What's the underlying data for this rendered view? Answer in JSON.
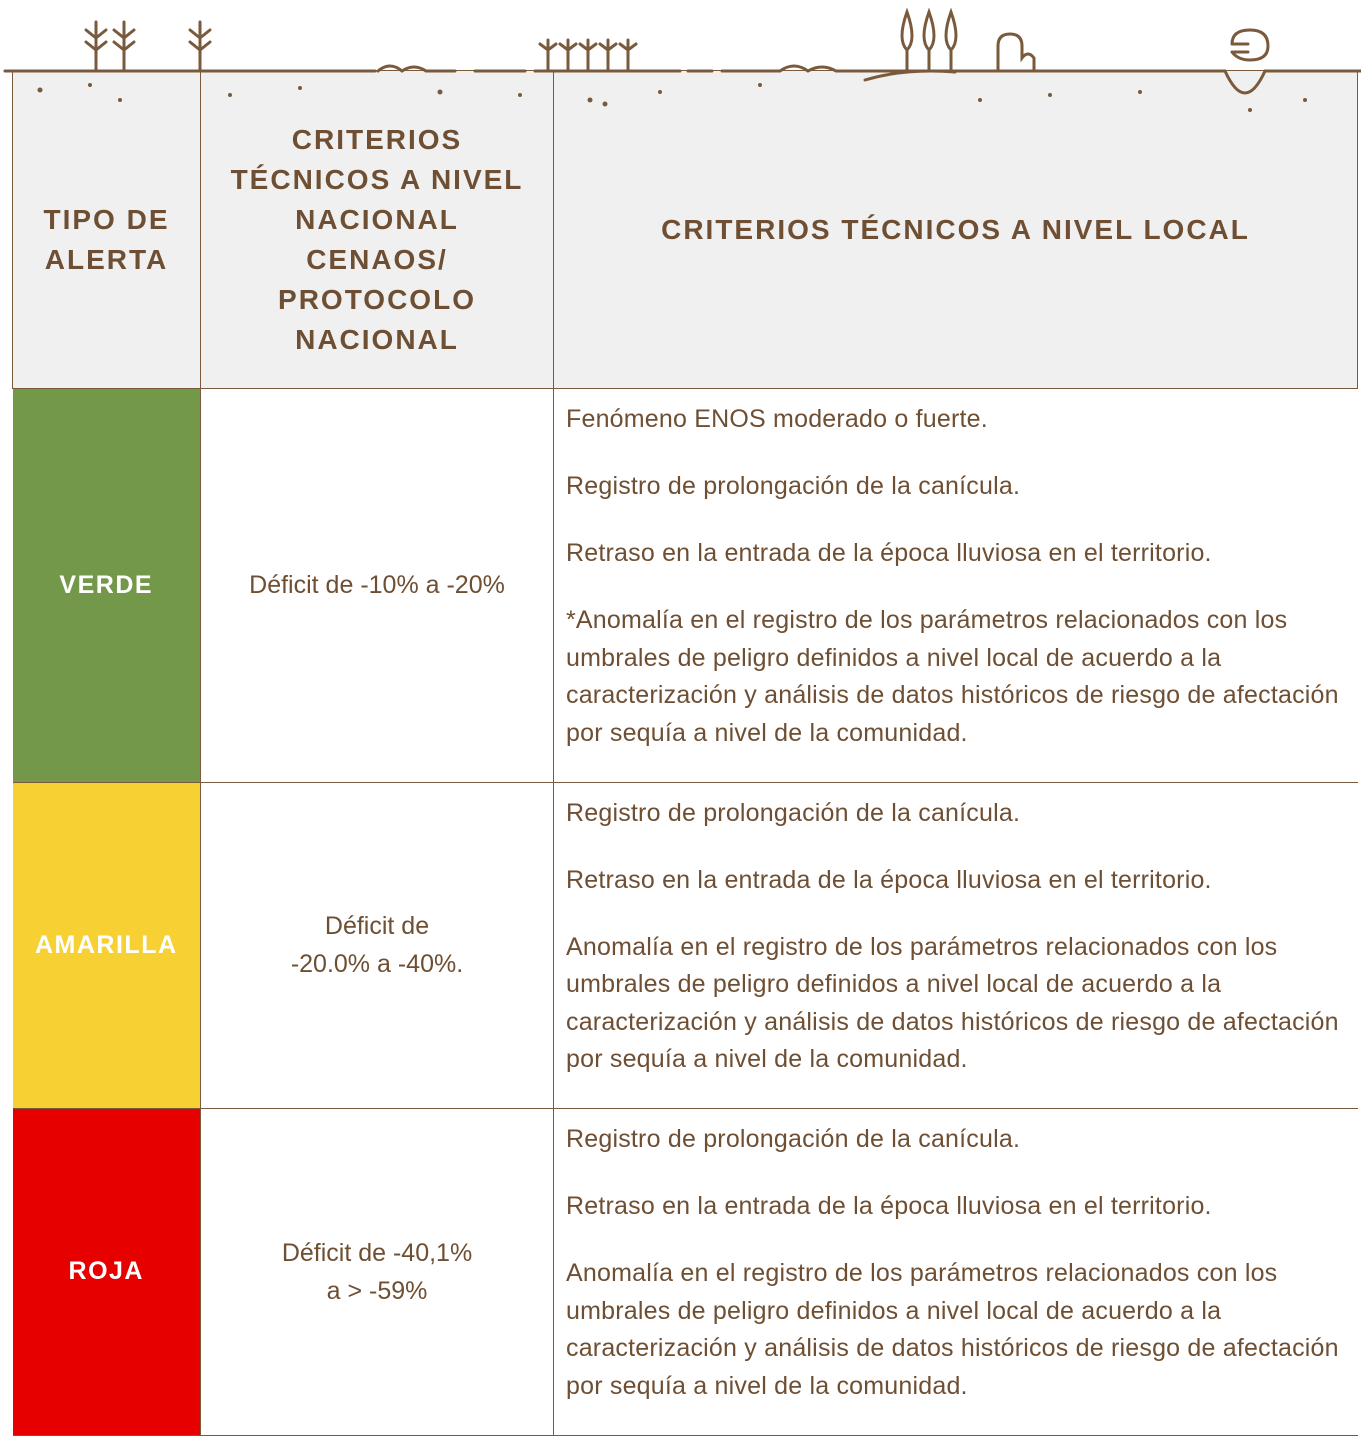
{
  "header": {
    "columns": [
      "TIPO DE ALERTA",
      "CRITERIOS TÉCNICOS A NIVEL NACIONAL CENAOS/ PROTOCOLO NACIONAL",
      "CRITERIOS TÉCNICOS A NIVEL LOCAL"
    ]
  },
  "table": {
    "rows": [
      {
        "alert": "VERDE",
        "color": "#74984a",
        "height": 379,
        "national": [
          "Déficit de -10% a -20%"
        ],
        "local": [
          "Fenómeno ENOS moderado o fuerte.",
          "Registro de prolongación de la canícula.",
          "Retraso en la entrada de la época lluviosa en el territorio.",
          "*Anomalía en el registro de los parámetros relacionados con los umbrales de peligro definidos a nivel local de acuerdo a la caracterización y análisis de datos históricos de riesgo de afectación por sequía a nivel de la comunidad."
        ]
      },
      {
        "alert": "AMARILLA",
        "color": "#f7d034",
        "height": 310,
        "national": [
          "Déficit de",
          "-20.0% a -40%."
        ],
        "local": [
          "Registro de prolongación de la canícula.",
          "Retraso en la entrada de la época lluviosa en el territorio.",
          "Anomalía en el registro de los parámetros relacionados con los umbrales de peligro definidos a nivel local de acuerdo a la caracterización y análisis de datos históricos de riesgo de afectación por sequía a nivel de la comunidad."
        ]
      },
      {
        "alert": "ROJA",
        "color": "#e60000",
        "height": 305,
        "national": [
          "Déficit de -40,1%",
          "a > -59%"
        ],
        "local": [
          "Registro de prolongación de la canícula.",
          "Retraso en la entrada de la época lluviosa en el territorio.",
          "Anomalía en el registro de los parámetros relacionados con los umbrales de peligro definidos a nivel local de acuerdo a la caracterización y análisis de datos históricos de riesgo de afectación por sequía a nivel de la comunidad."
        ]
      }
    ]
  }
}
